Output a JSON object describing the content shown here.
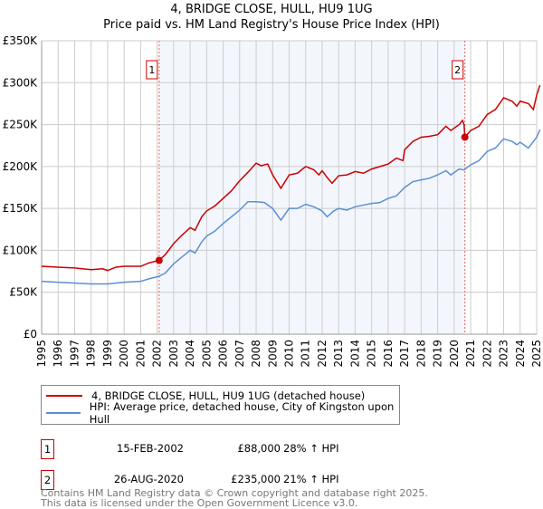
{
  "chart_data": {
    "type": "line",
    "title": "4, BRIDGE CLOSE, HULL, HU9 1UG",
    "subtitle": "Price paid vs. HM Land Registry's House Price Index (HPI)",
    "ylim": [
      0,
      350000
    ],
    "xlim": [
      1995,
      2025
    ],
    "yticks": [
      0,
      50000,
      100000,
      150000,
      200000,
      250000,
      300000,
      350000
    ],
    "ytick_labels": [
      "£0",
      "£50K",
      "£100K",
      "£150K",
      "£200K",
      "£250K",
      "£300K",
      "£350K"
    ],
    "xtick_labels": [
      "1995",
      "1996",
      "1997",
      "1998",
      "1999",
      "2000",
      "2001",
      "2002",
      "2003",
      "2004",
      "2005",
      "2006",
      "2007",
      "2008",
      "2009",
      "2010",
      "2011",
      "2012",
      "2013",
      "2014",
      "2015",
      "2016",
      "2017",
      "2018",
      "2019",
      "2020",
      "2021",
      "2022",
      "2023",
      "2024",
      "2025"
    ],
    "grid": true,
    "series": [
      {
        "name": "4, BRIDGE CLOSE, HULL, HU9 1UG (detached house)",
        "color": "#cc0000",
        "x": [
          1995,
          1996,
          1997,
          1998,
          1998.7,
          1999,
          1999.5,
          2000,
          2001,
          2001.5,
          2002.1,
          2002.5,
          2003,
          2003.5,
          2004,
          2004.3,
          2004.7,
          2005,
          2005.5,
          2006,
          2006.5,
          2007,
          2007.5,
          2008,
          2008.3,
          2008.7,
          2009,
          2009.5,
          2010,
          2010.5,
          2011,
          2011.5,
          2011.8,
          2012,
          2012.3,
          2012.6,
          2013,
          2013.5,
          2014,
          2014.5,
          2015,
          2015.5,
          2016,
          2016.5,
          2016.9,
          2017,
          2017.5,
          2018,
          2018.5,
          2019,
          2019.5,
          2019.8,
          2020.3,
          2020.5,
          2020.6,
          2020.65,
          2021,
          2021.5,
          2022,
          2022.5,
          2023,
          2023.5,
          2023.8,
          2024,
          2024.5,
          2024.8,
          2025,
          2025.2
        ],
        "y": [
          81,
          80,
          79,
          77,
          78,
          76,
          80,
          81,
          81,
          85,
          88,
          95,
          108,
          118,
          127,
          124,
          140,
          147,
          153,
          162,
          171,
          183,
          193,
          204,
          201,
          203,
          190,
          174,
          190,
          192,
          200,
          196,
          190,
          195,
          187,
          180,
          189,
          190,
          194,
          192,
          197,
          200,
          203,
          210,
          207,
          220,
          230,
          235,
          236,
          238,
          248,
          243,
          250,
          255,
          250,
          235,
          243,
          248,
          262,
          268,
          282,
          278,
          272,
          278,
          275,
          268,
          285,
          297
        ]
      },
      {
        "name": "HPI: Average price, detached house, City of Kingston upon Hull",
        "color": "#5b8fd1",
        "x": [
          1995,
          1996,
          1997,
          1998,
          1999,
          2000,
          2001,
          2001.5,
          2002.1,
          2002.5,
          2003,
          2003.5,
          2004,
          2004.3,
          2004.7,
          2005,
          2005.5,
          2006,
          2006.5,
          2007,
          2007.5,
          2008,
          2008.5,
          2009,
          2009.5,
          2010,
          2010.5,
          2011,
          2011.5,
          2012,
          2012.3,
          2012.7,
          2013,
          2013.5,
          2014,
          2014.5,
          2015,
          2015.5,
          2016,
          2016.5,
          2017,
          2017.5,
          2018,
          2018.5,
          2019,
          2019.5,
          2019.8,
          2020.3,
          2020.6,
          2021,
          2021.5,
          2022,
          2022.5,
          2023,
          2023.5,
          2023.8,
          2024,
          2024.5,
          2025,
          2025.2
        ],
        "y": [
          63,
          62,
          61,
          60,
          60,
          62,
          63,
          66,
          69,
          73,
          84,
          92,
          100,
          97,
          110,
          117,
          123,
          132,
          140,
          148,
          158,
          158,
          157,
          150,
          136,
          150,
          150,
          155,
          152,
          147,
          140,
          147,
          150,
          148,
          152,
          154,
          156,
          157,
          162,
          165,
          175,
          182,
          184,
          186,
          190,
          195,
          190,
          197,
          196,
          202,
          207,
          218,
          222,
          233,
          230,
          226,
          229,
          222,
          235,
          244
        ]
      }
    ],
    "y_unit_multiplier": 1000,
    "annotations": [
      {
        "label": "1",
        "x": 2002.12,
        "y": 88000
      },
      {
        "label": "2",
        "x": 2020.65,
        "y": 235000
      }
    ]
  },
  "legend": [
    "4, BRIDGE CLOSE, HULL, HU9 1UG (detached house)",
    "HPI: Average price, detached house, City of Kingston upon Hull"
  ],
  "sales": [
    {
      "num": "1",
      "date": "15-FEB-2002",
      "price": "£88,000",
      "hpi": "28% ↑ HPI"
    },
    {
      "num": "2",
      "date": "26-AUG-2020",
      "price": "£235,000",
      "hpi": "21% ↑ HPI"
    }
  ],
  "footer": [
    "Contains HM Land Registry data © Crown copyright and database right 2025.",
    "This data is licensed under the Open Government Licence v3.0."
  ]
}
